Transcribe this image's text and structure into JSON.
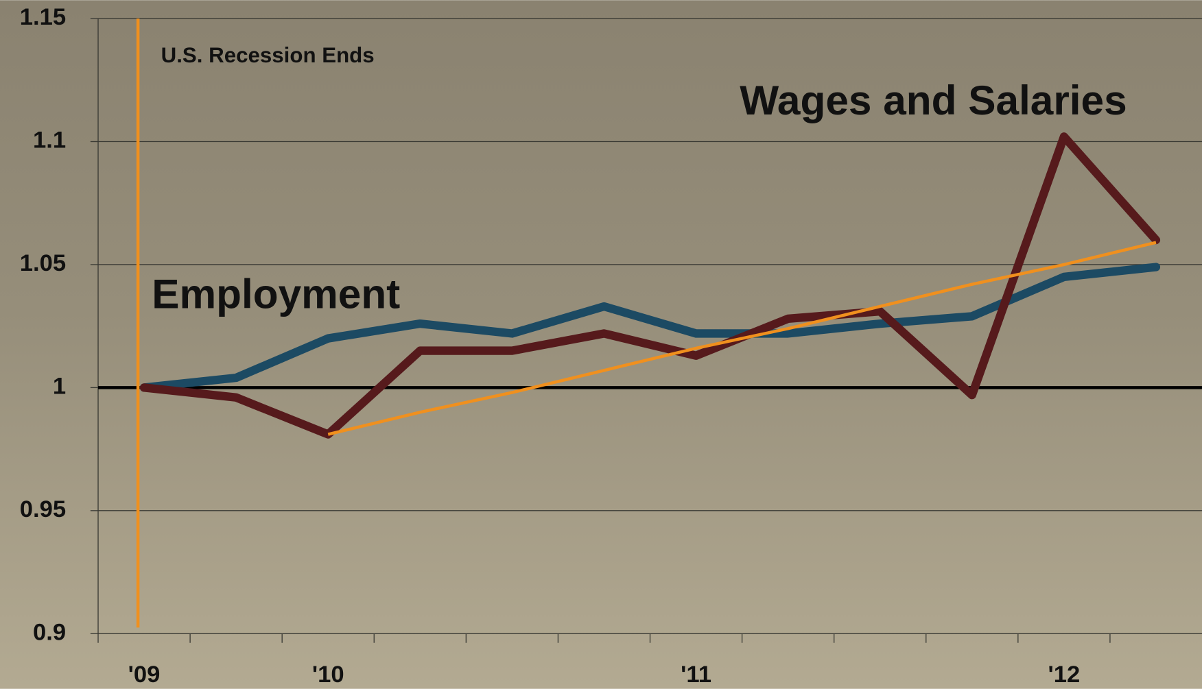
{
  "chart_data": {
    "type": "line",
    "categories": [
      "'09",
      null,
      "'10",
      null,
      null,
      null,
      "'11",
      null,
      null,
      null,
      "'12",
      null
    ],
    "series": [
      {
        "name": "Employment",
        "color": "#1c4a63",
        "values": [
          1.0,
          1.004,
          1.02,
          1.026,
          1.022,
          1.033,
          1.022,
          1.022,
          1.026,
          1.029,
          1.045,
          1.049
        ]
      },
      {
        "name": "Wages and Salaries",
        "color": "#561a1c",
        "values": [
          1.0,
          0.996,
          0.981,
          1.015,
          1.015,
          1.022,
          1.013,
          1.028,
          1.031,
          0.997,
          1.102,
          1.06
        ]
      }
    ],
    "trend": {
      "color": "#f0901e",
      "values": [
        null,
        null,
        0.981,
        0.99,
        0.998,
        1.007,
        1.016,
        1.024,
        1.033,
        1.042,
        1.05,
        1.059
      ]
    },
    "annotation": {
      "text": "U.S. Recession Ends",
      "x": "'09",
      "color": "#f0901e"
    },
    "hline": 1,
    "ylim": [
      0.9,
      1.15
    ],
    "yticks": [
      0.9,
      0.95,
      1,
      1.05,
      1.1,
      1.15
    ],
    "grid": true
  }
}
